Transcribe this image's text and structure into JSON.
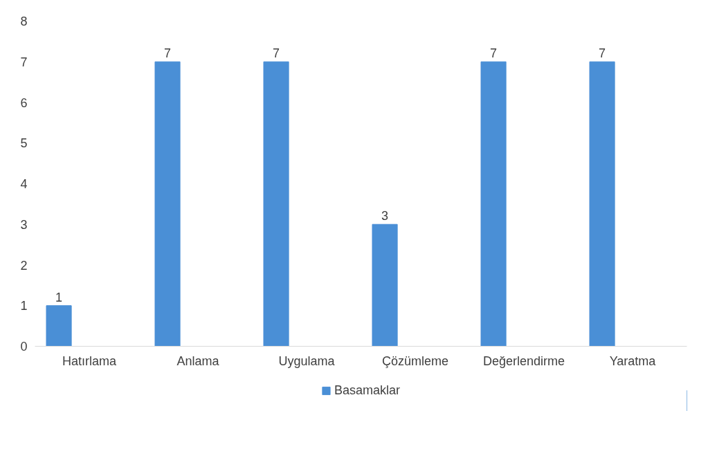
{
  "chart_data": {
    "type": "bar",
    "categories": [
      "Hatırlama",
      "Anlama",
      "Uygulama",
      "Çözümleme",
      "Değerlendirme",
      "Yaratma"
    ],
    "series": [
      {
        "name": "Basamaklar",
        "color": "#4a8fd6",
        "values": [
          1,
          7,
          7,
          3,
          7,
          7
        ]
      }
    ],
    "ylim": [
      0,
      8
    ],
    "yticks": [
      0,
      1,
      2,
      3,
      4,
      5,
      6,
      7,
      8
    ],
    "grid": false,
    "legend": "bottom",
    "data_labels": true
  }
}
